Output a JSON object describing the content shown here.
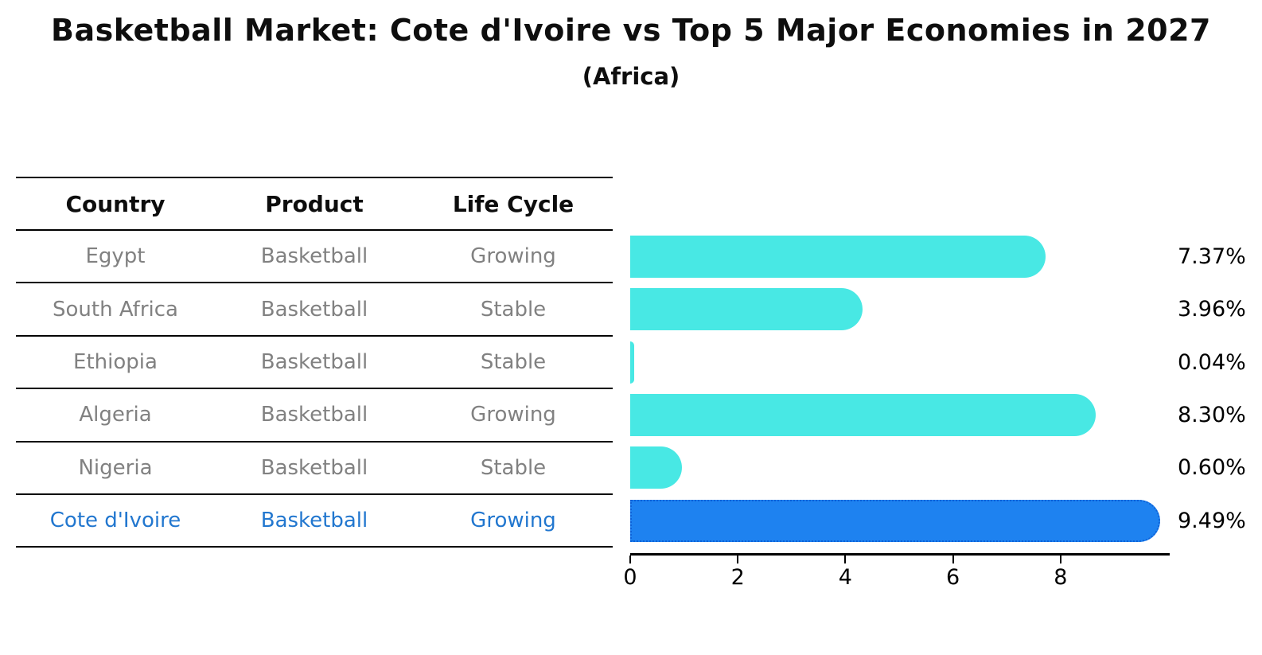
{
  "title": "Basketball Market: Cote d'Ivoire vs Top 5 Major Economies in 2027",
  "subtitle": "(Africa)",
  "colors": {
    "bar": "#48e8e4",
    "highlight_bar": "#1e82f0",
    "highlight_border": "#0e62d8",
    "highlight_text": "#2277cf",
    "row_text": "#818181",
    "header_text": "#0d0d0d",
    "axis": "#000000"
  },
  "table": {
    "headers": [
      "Country",
      "Product",
      "Life Cycle"
    ],
    "rows": [
      {
        "country": "Egypt",
        "product": "Basketball",
        "life_cycle": "Growing",
        "highlight": false
      },
      {
        "country": "South Africa",
        "product": "Basketball",
        "life_cycle": "Stable",
        "highlight": false
      },
      {
        "country": "Ethiopia",
        "product": "Basketball",
        "life_cycle": "Stable",
        "highlight": false
      },
      {
        "country": "Algeria",
        "product": "Basketball",
        "life_cycle": "Growing",
        "highlight": false
      },
      {
        "country": "Nigeria",
        "product": "Basketball",
        "life_cycle": "Stable",
        "highlight": false
      },
      {
        "country": "Cote d'Ivoire",
        "product": "Basketball",
        "life_cycle": "Growing",
        "highlight": true
      }
    ]
  },
  "chart_data": {
    "type": "bar",
    "orientation": "horizontal",
    "title": "Basketball Market: Cote d'Ivoire vs Top 5 Major Economies in 2027",
    "subtitle": "(Africa)",
    "categories": [
      "Egypt",
      "South Africa",
      "Ethiopia",
      "Algeria",
      "Nigeria",
      "Cote d'Ivoire"
    ],
    "values": [
      7.37,
      3.96,
      0.04,
      8.3,
      0.6,
      9.49
    ],
    "value_labels": [
      "7.37%",
      "3.96%",
      "0.04%",
      "8.30%",
      "0.60%",
      "9.49%"
    ],
    "highlight_index": 5,
    "x_ticks": [
      0,
      2,
      4,
      6,
      8
    ],
    "xlim": [
      0,
      10
    ],
    "xlabel": "",
    "ylabel": "",
    "grid": false,
    "legend": false,
    "unit": "percent"
  }
}
